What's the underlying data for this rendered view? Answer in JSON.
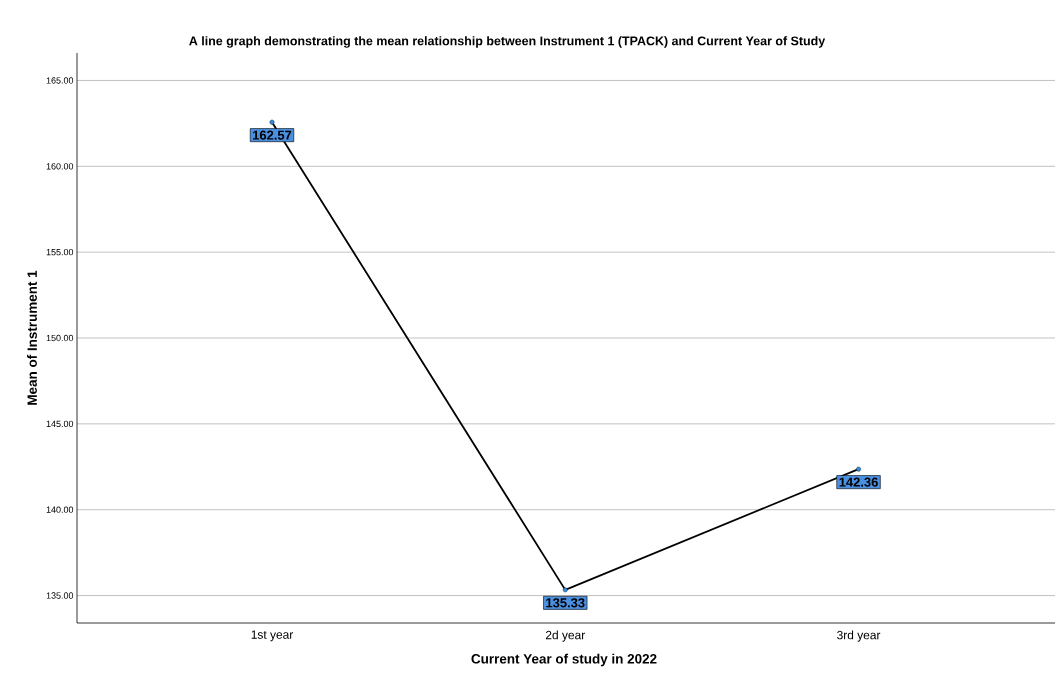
{
  "chart_data": {
    "type": "line",
    "title": "A line graph demonstrating the mean relationship between Instrument 1 (TPACK) and Current Year of Study",
    "xlabel": "Current Year of study in 2022",
    "ylabel": "Mean of Instrument 1",
    "categories": [
      "1st year",
      "2d year",
      "3rd year"
    ],
    "series": [
      {
        "color": "#000000",
        "values": [
          162.57,
          135.33,
          142.36
        ]
      }
    ],
    "ylim": [
      133.4,
      166.6
    ],
    "yticks": [
      {
        "value": 135,
        "label": "135.00"
      },
      {
        "value": 140,
        "label": "140.00"
      },
      {
        "value": 145,
        "label": "145.00"
      },
      {
        "value": 150,
        "label": "150.00"
      },
      {
        "value": 155,
        "label": "155.00"
      },
      {
        "value": 160,
        "label": "160.00"
      },
      {
        "value": 165,
        "label": "165.00"
      }
    ],
    "grid": "y",
    "marker": "circle",
    "line_style": "solid",
    "data_labels": true
  }
}
